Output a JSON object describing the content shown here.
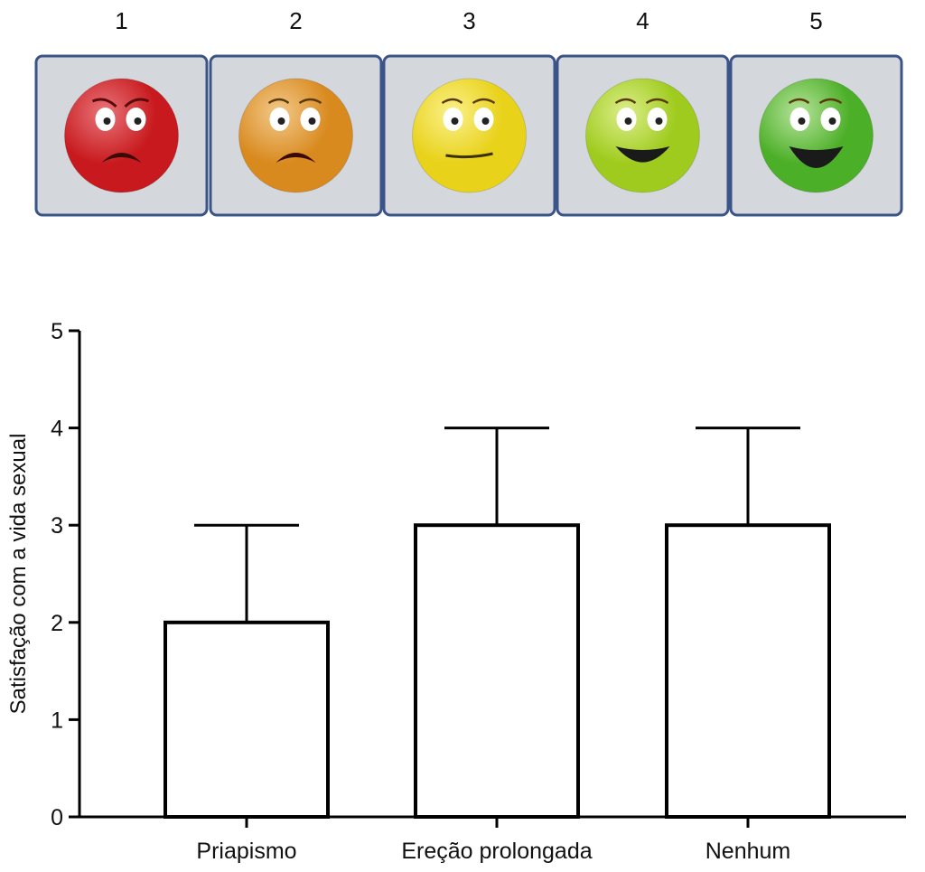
{
  "scale": {
    "items": [
      {
        "label": "1",
        "face": "angry-face",
        "color": "#c81a1e",
        "highlight": "#e8757a"
      },
      {
        "label": "2",
        "face": "sad-face",
        "color": "#d98a1f",
        "highlight": "#f2c98a"
      },
      {
        "label": "3",
        "face": "neutral-face",
        "color": "#e8d21a",
        "highlight": "#fbf08a"
      },
      {
        "label": "4",
        "face": "happy-face",
        "color": "#9fcb1e",
        "highlight": "#dcee8a"
      },
      {
        "label": "5",
        "face": "very-happy-face",
        "color": "#4caf28",
        "highlight": "#b6e39a"
      }
    ],
    "panel_color": "#d4d8dc",
    "border_color": "#3b5488"
  },
  "chart_data": {
    "type": "bar",
    "title": "",
    "xlabel": "",
    "ylabel": "Satisfação com a vida sexual",
    "categories": [
      "Priapismo",
      "Ereção prolongada",
      "Nenhum"
    ],
    "values": [
      2,
      3,
      3
    ],
    "error_upper": [
      3,
      4,
      4
    ],
    "ylim": [
      0,
      5
    ],
    "yticks": [
      "0",
      "1",
      "2",
      "3",
      "4",
      "5"
    ],
    "grid": false,
    "bar_fill": "#ffffff",
    "bar_stroke": "#000000"
  }
}
